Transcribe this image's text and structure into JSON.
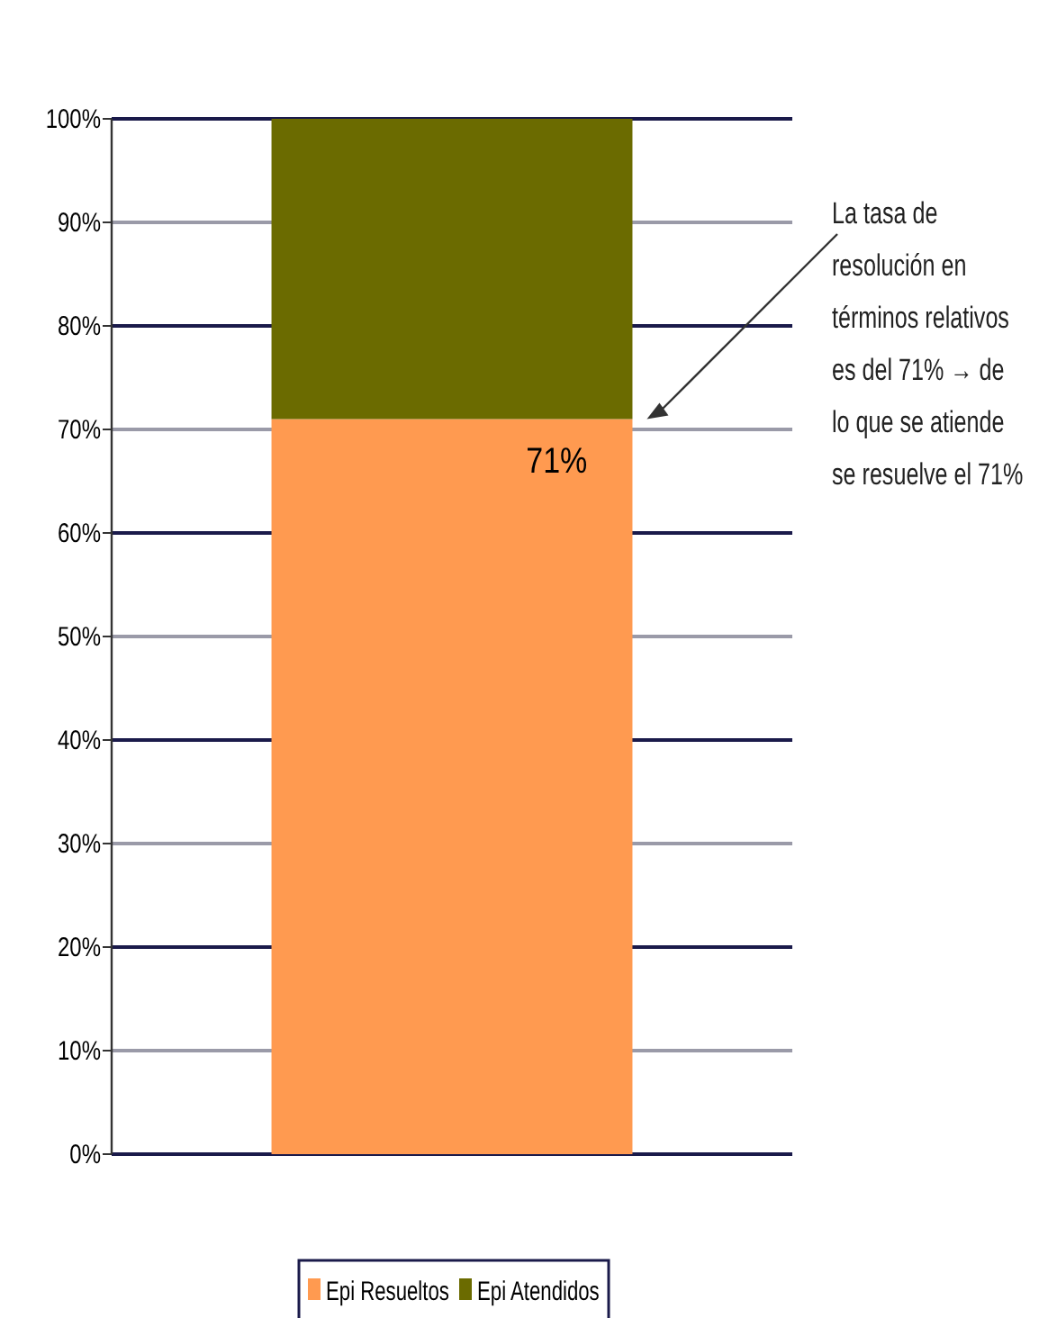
{
  "chart_data": {
    "type": "bar",
    "stacked": true,
    "categories": [
      null
    ],
    "series": [
      {
        "name": "Epi Resueltos",
        "color": "#ff9a50",
        "values": [
          71
        ],
        "value_labels": [
          "71%"
        ]
      },
      {
        "name": "Epi Atendidos",
        "color": "#6b6b00",
        "values": [
          29
        ],
        "value_labels": [
          null
        ]
      }
    ],
    "ylim": [
      0,
      100
    ],
    "yticks": [
      {
        "value": 0,
        "label": "0%"
      },
      {
        "value": 10,
        "label": "10%"
      },
      {
        "value": 20,
        "label": "20%"
      },
      {
        "value": 30,
        "label": "30%"
      },
      {
        "value": 40,
        "label": "40%"
      },
      {
        "value": 50,
        "label": "50%"
      },
      {
        "value": 60,
        "label": "60%"
      },
      {
        "value": 70,
        "label": "70%"
      },
      {
        "value": 80,
        "label": "80%"
      },
      {
        "value": 90,
        "label": "90%"
      },
      {
        "value": 100,
        "label": "100%"
      }
    ],
    "grid": true,
    "legend": "bottom",
    "annotations": [
      "La tasa de\nresolución en\ntérminos relativos\nes del 71% → de\nlo que se atiende\nse resuelve el 71%"
    ]
  }
}
